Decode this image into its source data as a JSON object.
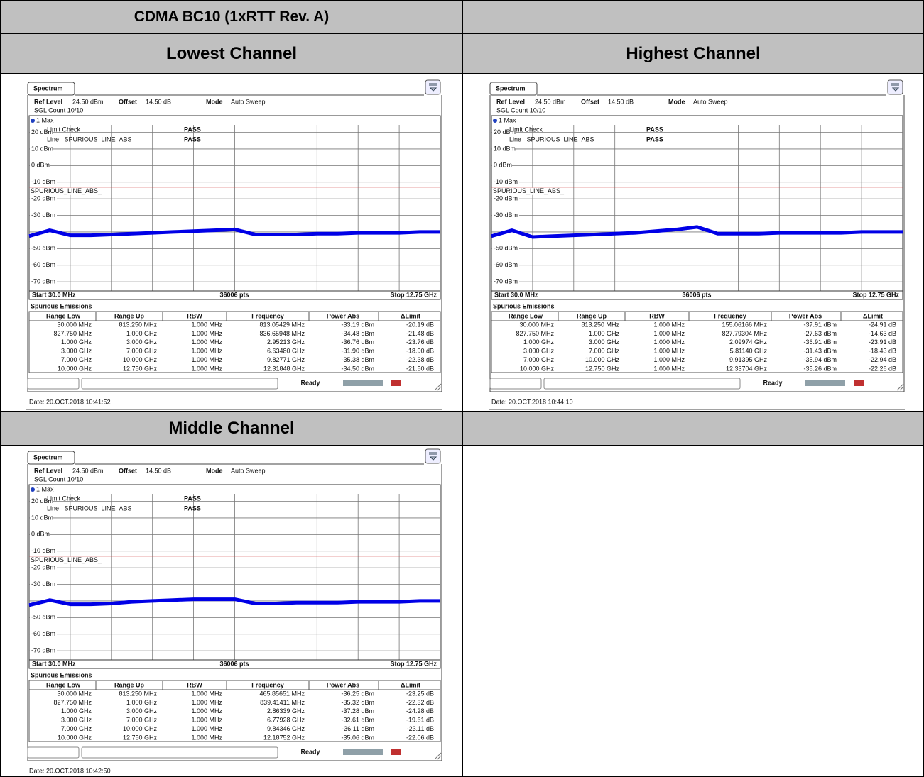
{
  "title": "CDMA BC10 (1xRTT Rev. A)",
  "screen": {
    "tab": "Spectrum",
    "ref_level_label": "Ref Level",
    "ref_level": "24.50 dBm",
    "offset_label": "Offset",
    "offset": "14.50 dB",
    "mode_label": "Mode",
    "mode": "Auto Sweep",
    "sweep_count": "SGL Count 10/10",
    "trace_label": "1 Max",
    "limit_check": "Limit Check",
    "limit_line": "Line _SPURIOUS_LINE_ABS_",
    "pass": "PASS",
    "limit_name": "SPURIOUS_LINE_ABS_",
    "limit_value": -13,
    "start": "Start 30.0 MHz",
    "points": "36006 pts",
    "stop": "Stop 12.75 GHz",
    "table_title": "Spurious Emissions",
    "columns": [
      "Range Low",
      "Range Up",
      "RBW",
      "Frequency",
      "Power Abs",
      "ΔLimit"
    ],
    "status": "Ready",
    "ylim": [
      -75.5,
      24.5
    ],
    "yticks": [
      {
        "value": 20,
        "label": "20 dBm"
      },
      {
        "value": 10,
        "label": "10 dBm"
      },
      {
        "value": 0,
        "label": "0 dBm"
      },
      {
        "value": -10,
        "label": "-10 dBm"
      },
      {
        "value": -20,
        "label": "-20 dBm"
      },
      {
        "value": -30,
        "label": "-30 dBm"
      },
      {
        "value": -40,
        "label": null
      },
      {
        "value": -50,
        "label": "-50 dBm"
      },
      {
        "value": -60,
        "label": "-60 dBm"
      },
      {
        "value": -70,
        "label": "-70 dBm"
      }
    ],
    "trace_color": "#0000e6",
    "limit_color": "#d04040"
  },
  "panels": [
    {
      "heading": "Lowest Channel",
      "date": "Date: 20.OCT.2018 10:41:52",
      "trace": [
        -42.5,
        -39,
        -42,
        -42,
        -41.5,
        -41,
        -40.5,
        -40,
        -39.5,
        -39,
        -38.5,
        -41.5,
        -41.5,
        -41.5,
        -41,
        -41,
        -40.5,
        -40.5,
        -40.5,
        -40,
        -40
      ],
      "rows": [
        [
          "30.000 MHz",
          "813.250 MHz",
          "1.000 MHz",
          "813.05429 MHz",
          "-33.19 dBm",
          "-20.19 dB"
        ],
        [
          "827.750 MHz",
          "1.000 GHz",
          "1.000 MHz",
          "836.65948 MHz",
          "-34.48 dBm",
          "-21.48 dB"
        ],
        [
          "1.000 GHz",
          "3.000 GHz",
          "1.000 MHz",
          "2.95213 GHz",
          "-36.76 dBm",
          "-23.76 dB"
        ],
        [
          "3.000 GHz",
          "7.000 GHz",
          "1.000 MHz",
          "6.63480 GHz",
          "-31.90 dBm",
          "-18.90 dB"
        ],
        [
          "7.000 GHz",
          "10.000 GHz",
          "1.000 MHz",
          "9.82771 GHz",
          "-35.38 dBm",
          "-22.38 dB"
        ],
        [
          "10.000 GHz",
          "12.750 GHz",
          "1.000 MHz",
          "12.31848 GHz",
          "-34.50 dBm",
          "-21.50 dB"
        ]
      ]
    },
    {
      "heading": "Highest Channel",
      "date": "Date: 20.OCT.2018 10:44:10",
      "trace": [
        -42.5,
        -39,
        -43,
        -42.5,
        -42,
        -41.5,
        -41,
        -40.5,
        -39.5,
        -38.5,
        -37,
        -41,
        -41,
        -41,
        -40.5,
        -40.5,
        -40.5,
        -40.5,
        -40,
        -40,
        -40
      ],
      "rows": [
        [
          "30.000 MHz",
          "813.250 MHz",
          "1.000 MHz",
          "155.06166 MHz",
          "-37.91 dBm",
          "-24.91 dB"
        ],
        [
          "827.750 MHz",
          "1.000 GHz",
          "1.000 MHz",
          "827.79304 MHz",
          "-27.63 dBm",
          "-14.63 dB"
        ],
        [
          "1.000 GHz",
          "3.000 GHz",
          "1.000 MHz",
          "2.09974 GHz",
          "-36.91 dBm",
          "-23.91 dB"
        ],
        [
          "3.000 GHz",
          "7.000 GHz",
          "1.000 MHz",
          "5.81140 GHz",
          "-31.43 dBm",
          "-18.43 dB"
        ],
        [
          "7.000 GHz",
          "10.000 GHz",
          "1.000 MHz",
          "9.91395 GHz",
          "-35.94 dBm",
          "-22.94 dB"
        ],
        [
          "10.000 GHz",
          "12.750 GHz",
          "1.000 MHz",
          "12.33704 GHz",
          "-35.26 dBm",
          "-22.26 dB"
        ]
      ]
    },
    {
      "heading": "Middle Channel",
      "date": "Date: 20.OCT.2018 10:42:50",
      "trace": [
        -42.5,
        -39.5,
        -42,
        -42,
        -41.5,
        -40.5,
        -40,
        -39.5,
        -39,
        -39,
        -39,
        -41.5,
        -41.5,
        -41,
        -41,
        -41,
        -40.5,
        -40.5,
        -40.5,
        -40,
        -40
      ],
      "rows": [
        [
          "30.000 MHz",
          "813.250 MHz",
          "1.000 MHz",
          "465.85651 MHz",
          "-36.25 dBm",
          "-23.25 dB"
        ],
        [
          "827.750 MHz",
          "1.000 GHz",
          "1.000 MHz",
          "839.41411 MHz",
          "-35.32 dBm",
          "-22.32 dB"
        ],
        [
          "1.000 GHz",
          "3.000 GHz",
          "1.000 MHz",
          "2.86339 GHz",
          "-37.28 dBm",
          "-24.28 dB"
        ],
        [
          "3.000 GHz",
          "7.000 GHz",
          "1.000 MHz",
          "6.77928 GHz",
          "-32.61 dBm",
          "-19.61 dB"
        ],
        [
          "7.000 GHz",
          "10.000 GHz",
          "1.000 MHz",
          "9.84346 GHz",
          "-36.11 dBm",
          "-23.11 dB"
        ],
        [
          "10.000 GHz",
          "12.750 GHz",
          "1.000 MHz",
          "12.18752 GHz",
          "-35.06 dBm",
          "-22.06 dB"
        ]
      ]
    }
  ]
}
